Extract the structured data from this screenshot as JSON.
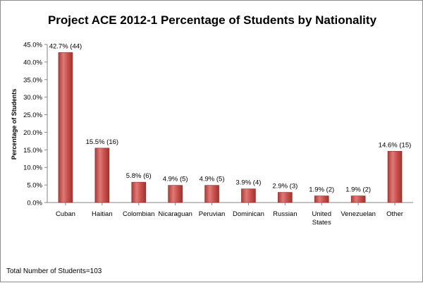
{
  "chart_data": {
    "type": "bar",
    "title": "Project ACE 2012-1 Percentage of Students by Nationality",
    "ylabel": "Percentage of Students",
    "xlabel": "",
    "categories": [
      "Cuban",
      "Haitian",
      "Colombian",
      "Nicaraguan",
      "Peruvian",
      "Dominican",
      "Russian",
      "United States",
      "Venezuelan",
      "Other"
    ],
    "values": [
      42.7,
      15.5,
      5.8,
      4.9,
      4.9,
      3.9,
      2.9,
      1.9,
      1.9,
      14.6
    ],
    "data_labels": [
      "42.7% (44)",
      "15.5% (16)",
      "5.8% (6)",
      "4.9% (5)",
      "4.9% (5)",
      "3.9% (4)",
      "2.9% (3)",
      "1.9% (2)",
      "1.9% (2)",
      "14.6% (15)"
    ],
    "ylim": [
      0,
      45
    ],
    "yticks": [
      "0.0%",
      "5.0%",
      "10.0%",
      "15.0%",
      "20.0%",
      "25.0%",
      "30.0%",
      "35.0%",
      "40.0%",
      "45.0%"
    ],
    "grid": false,
    "legend": "none",
    "bar_color": "#c0504d"
  },
  "footnote": "Total Number  of Students=103"
}
